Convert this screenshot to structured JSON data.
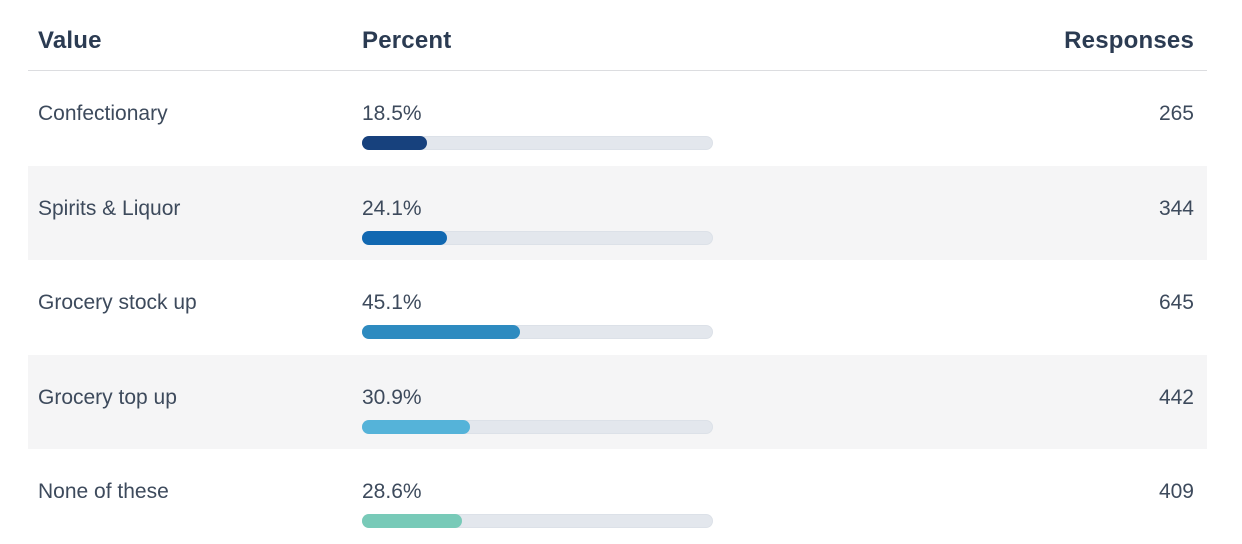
{
  "page": {
    "background": "#ffffff",
    "striped_row_bg": "#f5f5f6",
    "track_color": "#e3e7ed",
    "header_text_color": "#2b3b52",
    "body_text_color": "#3d4a5c",
    "divider_color": "#dcdde0"
  },
  "table": {
    "header": {
      "value": "Value",
      "percent": "Percent",
      "responses": "Responses"
    },
    "rows": [
      {
        "value": "Confectionary",
        "percent": "18.5%",
        "percent_num": 18.5,
        "responses": "265",
        "bar_color": "#17417d",
        "striped": false
      },
      {
        "value": "Spirits & Liquor",
        "percent": "24.1%",
        "percent_num": 24.1,
        "responses": "344",
        "bar_color": "#1168b1",
        "striped": true
      },
      {
        "value": "Grocery stock up",
        "percent": "45.1%",
        "percent_num": 45.1,
        "responses": "645",
        "bar_color": "#2e8bc0",
        "striped": false
      },
      {
        "value": "Grocery top up",
        "percent": "30.9%",
        "percent_num": 30.9,
        "responses": "442",
        "bar_color": "#55b3d9",
        "striped": true
      },
      {
        "value": "None of these",
        "percent": "28.6%",
        "percent_num": 28.6,
        "responses": "409",
        "bar_color": "#78cab8",
        "striped": false
      }
    ]
  },
  "chart_data": {
    "type": "table",
    "title": "",
    "columns": [
      "Value",
      "Percent",
      "Responses"
    ],
    "categories": [
      "Confectionary",
      "Spirits & Liquor",
      "Grocery stock up",
      "Grocery top up",
      "None of these"
    ],
    "series": [
      {
        "name": "Percent",
        "unit": "%",
        "values": [
          18.5,
          24.1,
          45.1,
          30.9,
          28.6
        ]
      },
      {
        "name": "Responses",
        "values": [
          265,
          344,
          645,
          442,
          409
        ]
      }
    ],
    "bar_scale": [
      0,
      100
    ],
    "bar_colors": [
      "#17417d",
      "#1168b1",
      "#2e8bc0",
      "#55b3d9",
      "#78cab8"
    ],
    "legend": "none",
    "grid": "off"
  }
}
